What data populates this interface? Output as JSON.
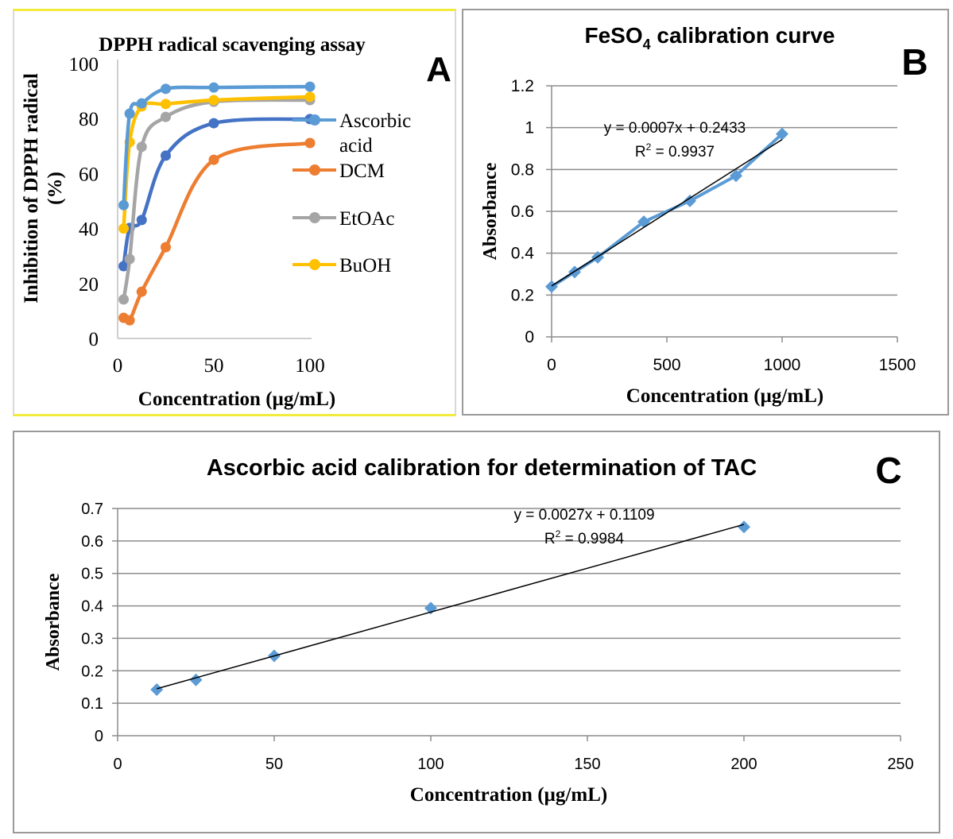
{
  "chart_data": [
    {
      "id": "A",
      "panel_label": "A",
      "type": "line",
      "title": "DPPH radical scavenging assay",
      "xlabel": "Concentration (µg/mL)",
      "ylabel_line1": "Inhibition of DPPH radical",
      "ylabel_line2": "(%)",
      "xlim": [
        0,
        100
      ],
      "ylim": [
        0,
        100
      ],
      "xticks": [
        "0",
        "50",
        "100"
      ],
      "yticks": [
        "0",
        "20",
        "40",
        "60",
        "80",
        "100"
      ],
      "grid": false,
      "legend_position": "right",
      "x": [
        3.125,
        6.25,
        12.5,
        25,
        50,
        100
      ],
      "series": [
        {
          "name": "Ascorbic acid",
          "legend_line1": "Ascorbic",
          "legend_line2": "acid",
          "color": "#5b9bd5",
          "in_legend": true,
          "values": [
            48.5,
            81.8,
            85.5,
            90.8,
            91.3,
            91.6
          ]
        },
        {
          "name": "",
          "color": "#4472c4",
          "in_legend": false,
          "values": [
            26.3,
            40.2,
            43.1,
            66.5,
            78.3,
            79.8
          ]
        },
        {
          "name": "DCM",
          "color": "#ed7d31",
          "in_legend": true,
          "values": [
            7.5,
            6.6,
            17.0,
            33.2,
            65.0,
            71.1
          ]
        },
        {
          "name": "EtOAc",
          "color": "#a5a5a5",
          "in_legend": true,
          "values": [
            14.2,
            28.9,
            69.7,
            80.6,
            86.1,
            86.7
          ]
        },
        {
          "name": "BuOH",
          "color": "#ffc000",
          "in_legend": true,
          "values": [
            40.0,
            71.4,
            84.4,
            85.3,
            86.7,
            87.9
          ]
        }
      ]
    },
    {
      "id": "B",
      "panel_label": "B",
      "type": "scatter",
      "title_prefix": "FeSO",
      "title_sub": "4",
      "title_suffix": " calibration curve",
      "xlabel": "Concentration (µg/mL)",
      "ylabel": "Absorbance",
      "xlim": [
        0,
        1500
      ],
      "ylim": [
        0,
        1.2
      ],
      "xticks": [
        "0",
        "500",
        "1000",
        "1500"
      ],
      "yticks": [
        "0",
        "0.2",
        "0.4",
        "0.6",
        "0.8",
        "1",
        "1.2"
      ],
      "grid": true,
      "series": [
        {
          "name": "FeSO4",
          "color": "#5b9bd5",
          "marker": "diamond",
          "connected": true,
          "x": [
            0,
            100,
            200,
            400,
            600,
            800,
            1000
          ],
          "values": [
            0.24,
            0.31,
            0.38,
            0.55,
            0.65,
            0.77,
            0.97
          ]
        }
      ],
      "trendline": {
        "slope": 0.0007,
        "intercept": 0.2433,
        "x_range": [
          0,
          1000
        ],
        "equation": "y = 0.0007x + 0.2433",
        "r2_label": "R",
        "r2_value": " = 0.9937"
      }
    },
    {
      "id": "C",
      "panel_label": "C",
      "type": "scatter",
      "title": "Ascorbic acid calibration for determination of TAC",
      "xlabel": "Concentration (µg/mL)",
      "ylabel": "Absorbance",
      "xlim": [
        0,
        250
      ],
      "ylim": [
        0,
        0.7
      ],
      "xticks": [
        "0",
        "50",
        "100",
        "150",
        "200",
        "250"
      ],
      "yticks": [
        "0",
        "0.1",
        "0.2",
        "0.3",
        "0.4",
        "0.5",
        "0.6",
        "0.7"
      ],
      "grid": true,
      "series": [
        {
          "name": "Ascorbic acid",
          "color": "#5b9bd5",
          "marker": "diamond",
          "connected": false,
          "x": [
            12.5,
            25,
            50,
            100,
            200
          ],
          "values": [
            0.142,
            0.172,
            0.246,
            0.393,
            0.643
          ]
        }
      ],
      "trendline": {
        "slope": 0.0027,
        "intercept": 0.1109,
        "x_range": [
          12.5,
          200
        ],
        "equation": "y = 0.0027x + 0.1109",
        "r2_label": "R",
        "r2_value": " = 0.9984"
      }
    }
  ]
}
